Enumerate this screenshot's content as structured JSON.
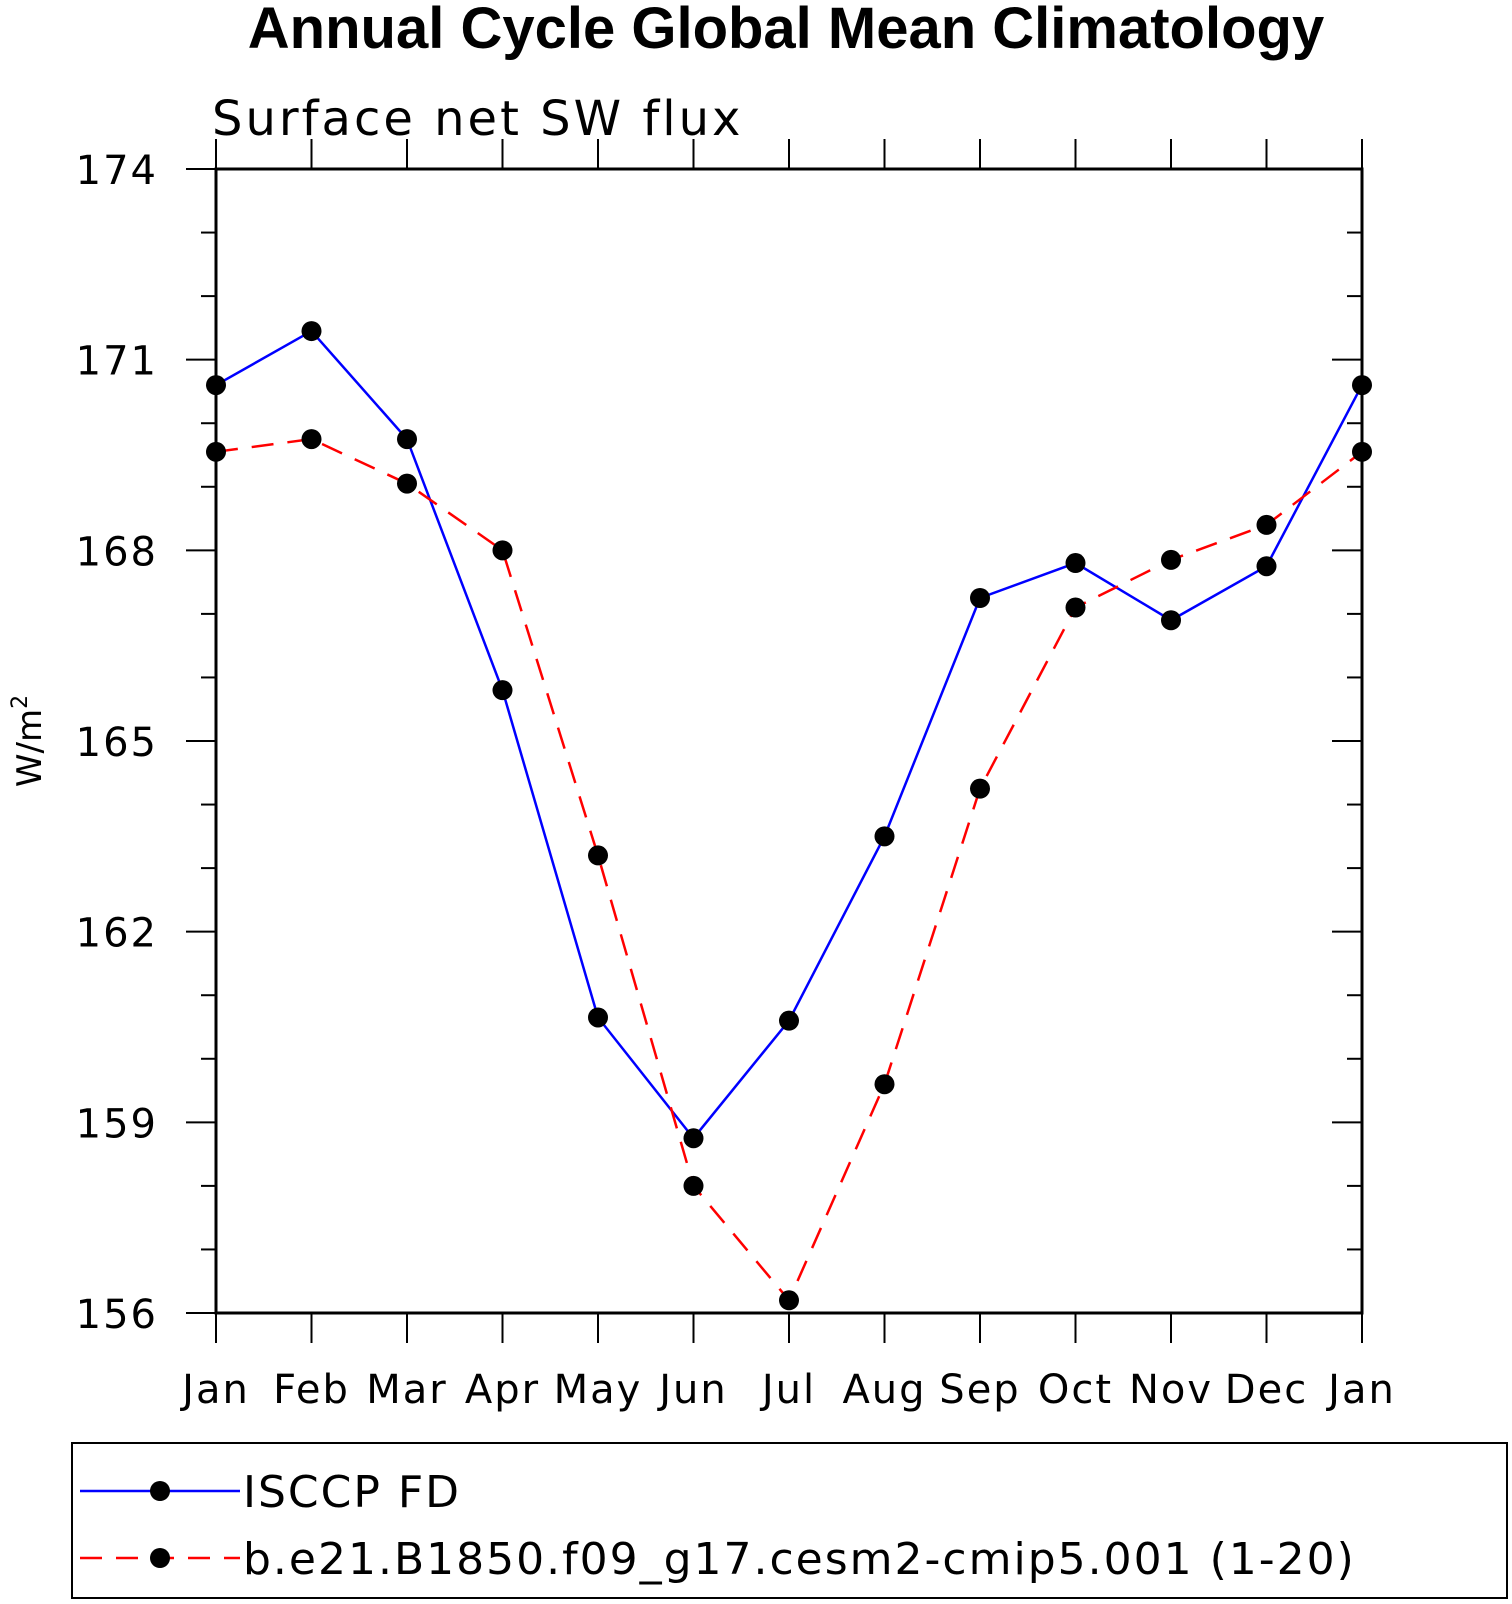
{
  "chart_data": {
    "type": "line",
    "title": "Annual Cycle Global Mean Climatology",
    "subtitle": "Surface net SW flux",
    "xlabel": "",
    "ylabel": "W/m",
    "ylabel_superscript": "2",
    "ylim": [
      156,
      174
    ],
    "y_major_ticks": [
      156,
      159,
      162,
      165,
      168,
      171,
      174
    ],
    "y_minor_step": 1,
    "categories": [
      "Jan",
      "Feb",
      "Mar",
      "Apr",
      "May",
      "Jun",
      "Jul",
      "Aug",
      "Sep",
      "Oct",
      "Nov",
      "Dec",
      "Jan"
    ],
    "series": [
      {
        "name": "ISCCP FD",
        "color": "#0000ff",
        "dash": "solid",
        "marker": "filled-circle",
        "values": [
          170.6,
          171.45,
          169.75,
          165.8,
          160.65,
          158.75,
          160.6,
          163.5,
          167.25,
          167.8,
          166.9,
          167.75,
          170.6
        ]
      },
      {
        "name": "b.e21.B1850.f09_g17.cesm2-cmip5.001 (1-20)",
        "color": "#ff0000",
        "dash": "dashed",
        "marker": "filled-circle",
        "values": [
          169.55,
          169.75,
          169.05,
          168.0,
          163.2,
          158.0,
          156.2,
          159.6,
          164.25,
          167.1,
          167.85,
          168.4,
          169.55
        ]
      }
    ],
    "legend_position": "bottom"
  }
}
